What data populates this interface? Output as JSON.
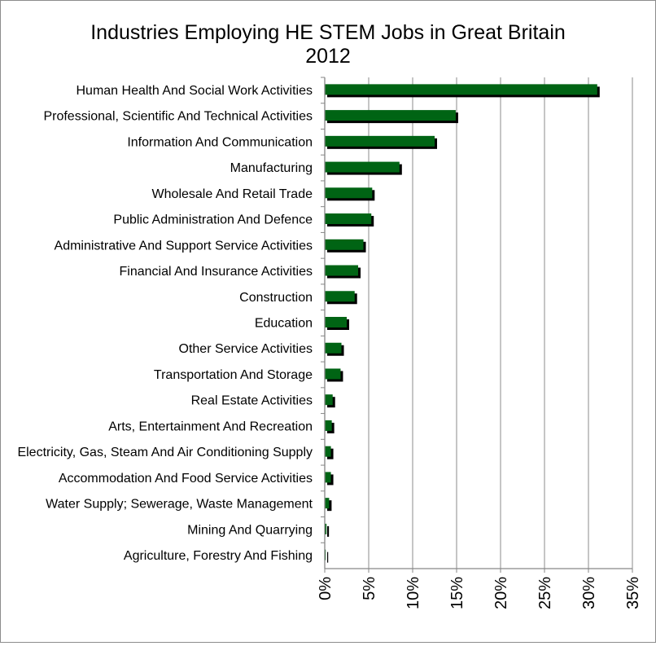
{
  "chart_data": {
    "type": "bar",
    "orientation": "horizontal",
    "title": "Industries Employing HE STEM Jobs in Great Britain",
    "subtitle": "2012",
    "categories": [
      "Human Health And Social Work Activities",
      "Professional, Scientific And Technical Activities",
      "Information And Communication",
      "Manufacturing",
      "Wholesale And Retail Trade",
      "Public Administration And Defence",
      "Administrative And Support Service Activities",
      "Financial And Insurance Activities",
      "Construction",
      "Education",
      "Other Service Activities",
      "Transportation And Storage",
      "Real Estate Activities",
      "Arts, Entertainment And Recreation",
      "Electricity, Gas, Steam And Air Conditioning Supply",
      "Accommodation And Food Service Activities",
      "Water Supply; Sewerage, Waste Management ",
      "Mining And Quarrying",
      "Agriculture, Forestry And Fishing"
    ],
    "values": [
      31.0,
      14.9,
      12.5,
      8.5,
      5.4,
      5.3,
      4.4,
      3.8,
      3.4,
      2.5,
      1.9,
      1.8,
      0.9,
      0.8,
      0.7,
      0.7,
      0.5,
      0.2,
      0.1
    ],
    "xlim": [
      0,
      35
    ],
    "xticks": [
      "0%",
      "5%",
      "10%",
      "15%",
      "20%",
      "25%",
      "30%",
      "35%"
    ],
    "xtick_values": [
      0,
      5,
      10,
      15,
      20,
      25,
      30,
      35
    ],
    "grid": "vertical",
    "legend": "none",
    "colors": {
      "bar": "#006414",
      "shadow": "#000000",
      "grid": "#a6a6a6",
      "axis": "#868686"
    }
  }
}
